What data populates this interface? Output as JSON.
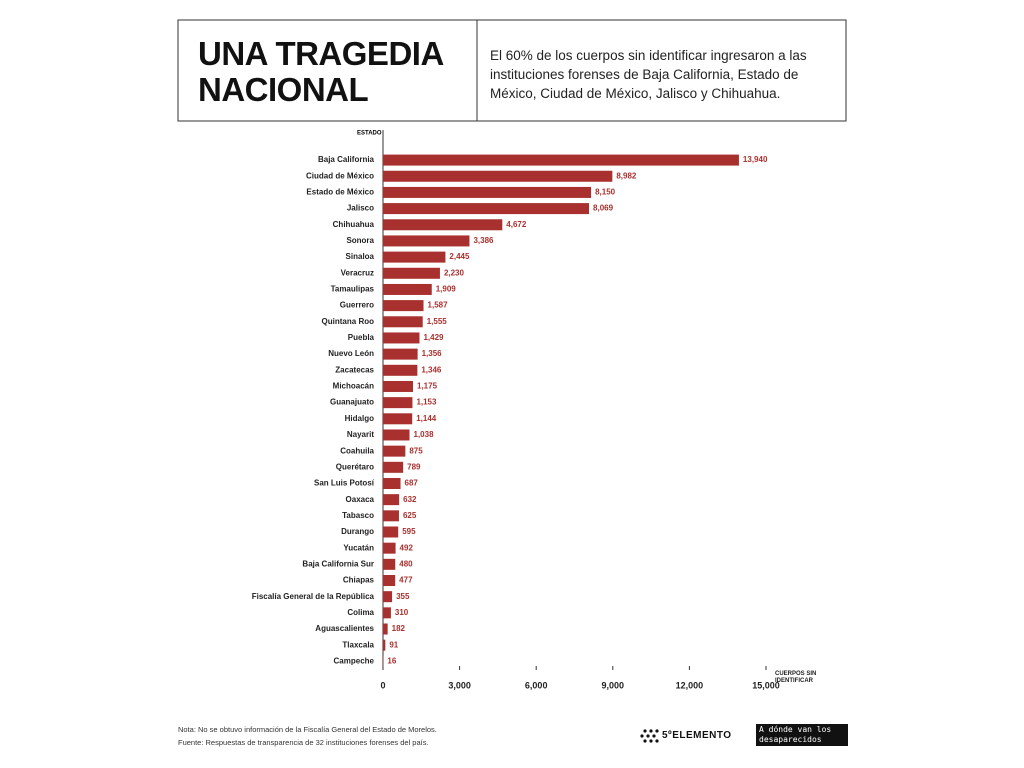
{
  "chart_data": {
    "type": "bar",
    "orientation": "horizontal",
    "title": "UNA TRAGEDIA NACIONAL",
    "subtitle": "El 60% de los cuerpos sin identificar ingresaron a las instituciones forenses de Baja California, Estado de México, Ciudad de México, Jalisco y Chihuahua.",
    "ylabel": "ESTADO",
    "xlabel": "CUERPOS SIN IDENTIFICAR",
    "categories": [
      "Baja California",
      "Ciudad de México",
      "Estado de México",
      "Jalisco",
      "Chihuahua",
      "Sonora",
      "Sinaloa",
      "Veracruz",
      "Tamaulipas",
      "Guerrero",
      "Quintana Roo",
      "Puebla",
      "Nuevo León",
      "Zacatecas",
      "Michoacán",
      "Guanajuato",
      "Hidalgo",
      "Nayarit",
      "Coahuila",
      "Querétaro",
      "San Luis Potosí",
      "Oaxaca",
      "Tabasco",
      "Durango",
      "Yucatán",
      "Baja California Sur",
      "Chiapas",
      "Fiscalía General de la República",
      "Colima",
      "Aguascalientes",
      "Tlaxcala",
      "Campeche"
    ],
    "values": [
      13940,
      8982,
      8150,
      8069,
      4672,
      3386,
      2445,
      2230,
      1909,
      1587,
      1555,
      1429,
      1356,
      1346,
      1175,
      1153,
      1144,
      1038,
      875,
      789,
      687,
      632,
      625,
      595,
      492,
      480,
      477,
      355,
      310,
      182,
      91,
      16
    ],
    "value_labels": [
      "13,940",
      "8,982",
      "8,150",
      "8,069",
      "4,672",
      "3,386",
      "2,445",
      "2,230",
      "1,909",
      "1,587",
      "1,555",
      "1,429",
      "1,356",
      "1,346",
      "1,175",
      "1,153",
      "1,144",
      "1,038",
      "875",
      "789",
      "687",
      "632",
      "625",
      "595",
      "492",
      "480",
      "477",
      "355",
      "310",
      "182",
      "91",
      "16"
    ],
    "color": "#a8302e",
    "xlim": [
      0,
      15000
    ],
    "xticks": [
      0,
      {
        "value": 3000,
        "label": "3,000"
      },
      {
        "value": 6000,
        "label": "6,000"
      },
      {
        "value": 9000,
        "label": "9,000"
      },
      {
        "value": 12000,
        "label": "12,000"
      },
      {
        "value": 15000,
        "label": "15,000"
      }
    ],
    "notes": [
      "Nota: No se obtuvo información de la Fiscalía General del Estado de Morelos.",
      "Fuente: Respuestas de transparencia de 32 instituciones forenses del país."
    ],
    "logos": [
      "5ºELEMENTO",
      "A dónde van los desaparecidos"
    ]
  }
}
